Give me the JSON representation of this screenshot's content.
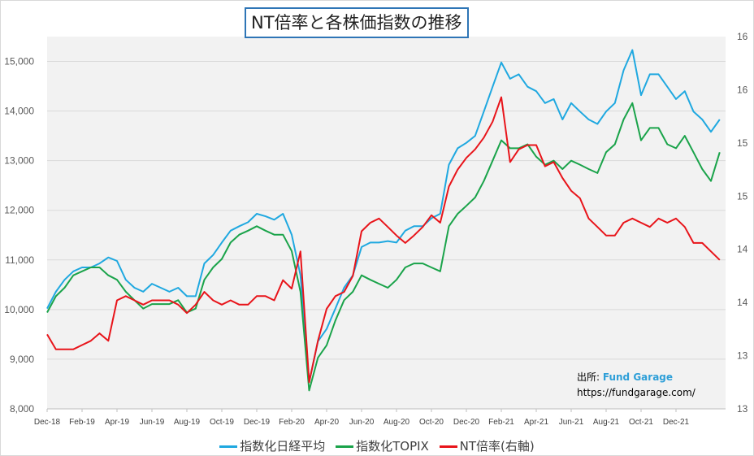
{
  "chart_data": {
    "type": "line",
    "title": "NT倍率と各株価指数の推移",
    "x_tick_labels": [
      "Dec-18",
      "Feb-19",
      "Apr-19",
      "Jun-19",
      "Aug-19",
      "Oct-19",
      "Dec-19",
      "Feb-20",
      "Apr-20",
      "Jun-20",
      "Aug-20",
      "Oct-20",
      "Dec-20",
      "Feb-21",
      "Apr-21",
      "Jun-21",
      "Aug-21",
      "Oct-21",
      "Dec-21"
    ],
    "x_resolution": "semi-monthly, starting Dec-18",
    "y_left": {
      "ticks": [
        "8,000",
        "9,000",
        "10,000",
        "11,000",
        "12,000",
        "13,000",
        "14,000",
        "15,000"
      ],
      "range": [
        8000,
        15500
      ]
    },
    "y_right": {
      "ticks": [
        "13",
        "13",
        "14",
        "14",
        "15",
        "15",
        "16",
        "16"
      ],
      "range": [
        13,
        16.5
      ]
    },
    "grid": true,
    "legend_position": "bottom",
    "series": [
      {
        "name": "指数化日経平均",
        "axis": "left",
        "color": "#1fa8e0",
        "values": [
          10020,
          10360,
          10600,
          10770,
          10850,
          10850,
          10930,
          11050,
          10980,
          10600,
          10440,
          10360,
          10520,
          10440,
          10360,
          10440,
          10270,
          10270,
          10930,
          11100,
          11350,
          11590,
          11680,
          11760,
          11930,
          11880,
          11810,
          11930,
          11510,
          10690,
          8540,
          9360,
          9610,
          10020,
          10440,
          10690,
          11260,
          11350,
          11350,
          11380,
          11350,
          11590,
          11680,
          11680,
          11840,
          11930,
          12920,
          13250,
          13360,
          13500,
          13990,
          14490,
          14980,
          14650,
          14740,
          14490,
          14400,
          14160,
          14240,
          13830,
          14160,
          13990,
          13830,
          13740,
          13990,
          14160,
          14820,
          15230,
          14320,
          14740,
          14740,
          14490,
          14240,
          14400,
          13990,
          13830,
          13580,
          13830
        ]
      },
      {
        "name": "指数化TOPIX",
        "axis": "left",
        "color": "#1aa34a",
        "values": [
          9940,
          10270,
          10440,
          10690,
          10770,
          10850,
          10850,
          10690,
          10600,
          10360,
          10190,
          10020,
          10110,
          10110,
          10110,
          10190,
          9940,
          10020,
          10600,
          10850,
          11020,
          11350,
          11510,
          11590,
          11680,
          11590,
          11510,
          11510,
          11180,
          10360,
          8370,
          9030,
          9280,
          9780,
          10190,
          10360,
          10690,
          10600,
          10520,
          10440,
          10600,
          10850,
          10930,
          10930,
          10850,
          10770,
          11680,
          11930,
          12090,
          12260,
          12590,
          13000,
          13410,
          13250,
          13250,
          13330,
          13080,
          12920,
          13000,
          12830,
          13000,
          12920,
          12830,
          12750,
          13170,
          13330,
          13830,
          14160,
          13410,
          13660,
          13660,
          13330,
          13250,
          13500,
          13170,
          12830,
          12590,
          13170
        ]
      },
      {
        "name": "NT倍率(右軸)",
        "axis": "right",
        "color": "#e8141a",
        "values": [
          13.7,
          13.56,
          13.56,
          13.56,
          13.6,
          13.64,
          13.71,
          13.64,
          14.02,
          14.06,
          14.02,
          13.98,
          14.02,
          14.02,
          14.02,
          13.98,
          13.9,
          13.98,
          14.1,
          14.02,
          13.98,
          14.02,
          13.98,
          13.98,
          14.06,
          14.06,
          14.02,
          14.21,
          14.13,
          14.48,
          13.25,
          13.64,
          13.94,
          14.06,
          14.1,
          14.25,
          14.67,
          14.75,
          14.79,
          14.71,
          14.63,
          14.56,
          14.63,
          14.71,
          14.82,
          14.75,
          15.09,
          15.25,
          15.36,
          15.44,
          15.55,
          15.7,
          15.93,
          15.32,
          15.44,
          15.48,
          15.48,
          15.28,
          15.32,
          15.17,
          15.05,
          14.98,
          14.79,
          14.71,
          14.63,
          14.63,
          14.75,
          14.79,
          14.75,
          14.71,
          14.79,
          14.75,
          14.79,
          14.71,
          14.56,
          14.56,
          14.48,
          14.4
        ]
      }
    ]
  },
  "source": {
    "label": "出所:",
    "brand": "Fund Garage",
    "url": "https://fundgarage.com/"
  }
}
